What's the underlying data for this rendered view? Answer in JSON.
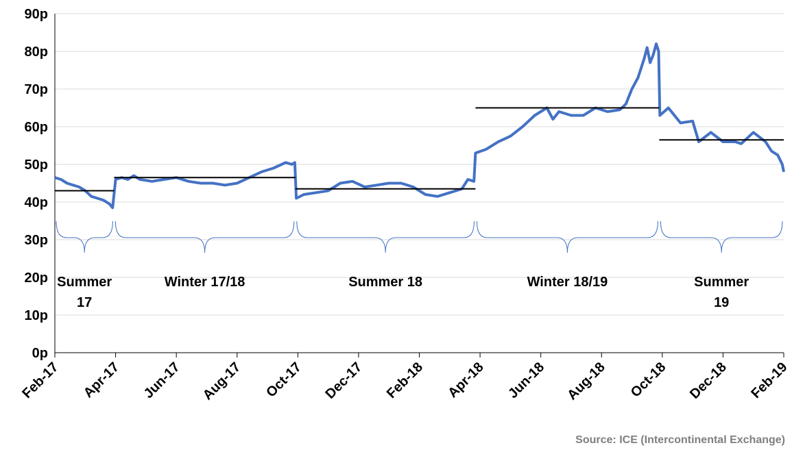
{
  "chart_data": {
    "type": "line",
    "annotation": "Source: ICE (Intercontinental Exchange)",
    "xlim": [
      0,
      24
    ],
    "xticks": [
      {
        "value": 0,
        "label": "Feb-17"
      },
      {
        "value": 2,
        "label": "Apr-17"
      },
      {
        "value": 4,
        "label": "Jun-17"
      },
      {
        "value": 6,
        "label": "Aug-17"
      },
      {
        "value": 8,
        "label": "Oct-17"
      },
      {
        "value": 10,
        "label": "Dec-17"
      },
      {
        "value": 12,
        "label": "Feb-18"
      },
      {
        "value": 14,
        "label": "Apr-18"
      },
      {
        "value": 16,
        "label": "Jun-18"
      },
      {
        "value": 18,
        "label": "Aug-18"
      },
      {
        "value": 20,
        "label": "Oct-18"
      },
      {
        "value": 22,
        "label": "Dec-18"
      },
      {
        "value": 24,
        "label": "Feb-19"
      }
    ],
    "ylim": [
      0,
      90
    ],
    "yticks": [
      {
        "value": 0,
        "label": "0p"
      },
      {
        "value": 10,
        "label": "10p"
      },
      {
        "value": 20,
        "label": "20p"
      },
      {
        "value": 30,
        "label": "30p"
      },
      {
        "value": 40,
        "label": "40p"
      },
      {
        "value": 50,
        "label": "50p"
      },
      {
        "value": 60,
        "label": "60p"
      },
      {
        "value": 70,
        "label": "70p"
      },
      {
        "value": 80,
        "label": "80p"
      },
      {
        "value": 90,
        "label": "90p"
      }
    ],
    "grid": true,
    "series": [
      {
        "color": "#4472c4",
        "x": [
          0,
          0.2,
          0.4,
          0.6,
          0.8,
          1.0,
          1.2,
          1.4,
          1.6,
          1.8,
          1.9,
          2.0,
          2.2,
          2.4,
          2.6,
          2.8,
          3.2,
          3.6,
          4.0,
          4.4,
          4.8,
          5.2,
          5.6,
          6.0,
          6.4,
          6.8,
          7.2,
          7.6,
          7.8,
          7.9,
          7.95,
          8.2,
          8.6,
          9.0,
          9.4,
          9.8,
          10.2,
          10.6,
          11.0,
          11.4,
          11.8,
          12.2,
          12.6,
          13.0,
          13.4,
          13.6,
          13.8,
          13.85,
          14.2,
          14.6,
          15.0,
          15.4,
          15.8,
          16.2,
          16.4,
          16.6,
          17.0,
          17.4,
          17.8,
          18.2,
          18.6,
          18.8,
          19.0,
          19.2,
          19.4,
          19.5,
          19.6,
          19.7,
          19.8,
          19.88,
          19.92,
          20.2,
          20.6,
          21.0,
          21.2,
          21.6,
          22.0,
          22.4,
          22.6,
          23.0,
          23.4,
          23.6,
          23.8,
          23.95,
          24.0
        ],
        "values": [
          46.5,
          46,
          45,
          44.5,
          44,
          43,
          41.5,
          41,
          40.5,
          39.5,
          38.5,
          46,
          46.5,
          46,
          47,
          46,
          45.5,
          46,
          46.5,
          45.5,
          45,
          45,
          44.5,
          45,
          46.5,
          48,
          49,
          50.5,
          50,
          50.5,
          41,
          42,
          42.5,
          43,
          45,
          45.5,
          44,
          44.5,
          45,
          45,
          44,
          42,
          41.5,
          42.5,
          43.5,
          46,
          45.5,
          53,
          54,
          56,
          57.5,
          60,
          63,
          65,
          62,
          64,
          63,
          63,
          65,
          64,
          64.5,
          66,
          70,
          73,
          78,
          81,
          77,
          79,
          82,
          80,
          63,
          65,
          61,
          61.5,
          56,
          58.5,
          56,
          56,
          55.5,
          58.5,
          56,
          53.5,
          52.5,
          50,
          48
        ]
      }
    ],
    "periods": [
      {
        "label": "Summer\n17",
        "start": 0,
        "end": 1.95,
        "average": 43
      },
      {
        "label": "Winter 17/18",
        "start": 1.95,
        "end": 7.92,
        "average": 46.5
      },
      {
        "label": "Summer 18",
        "start": 7.92,
        "end": 13.85,
        "average": 43.5
      },
      {
        "label": "Winter 18/19",
        "start": 13.85,
        "end": 19.9,
        "average": 65
      },
      {
        "label": "Summer\n19",
        "start": 19.9,
        "end": 24,
        "average": 56.5
      }
    ]
  }
}
